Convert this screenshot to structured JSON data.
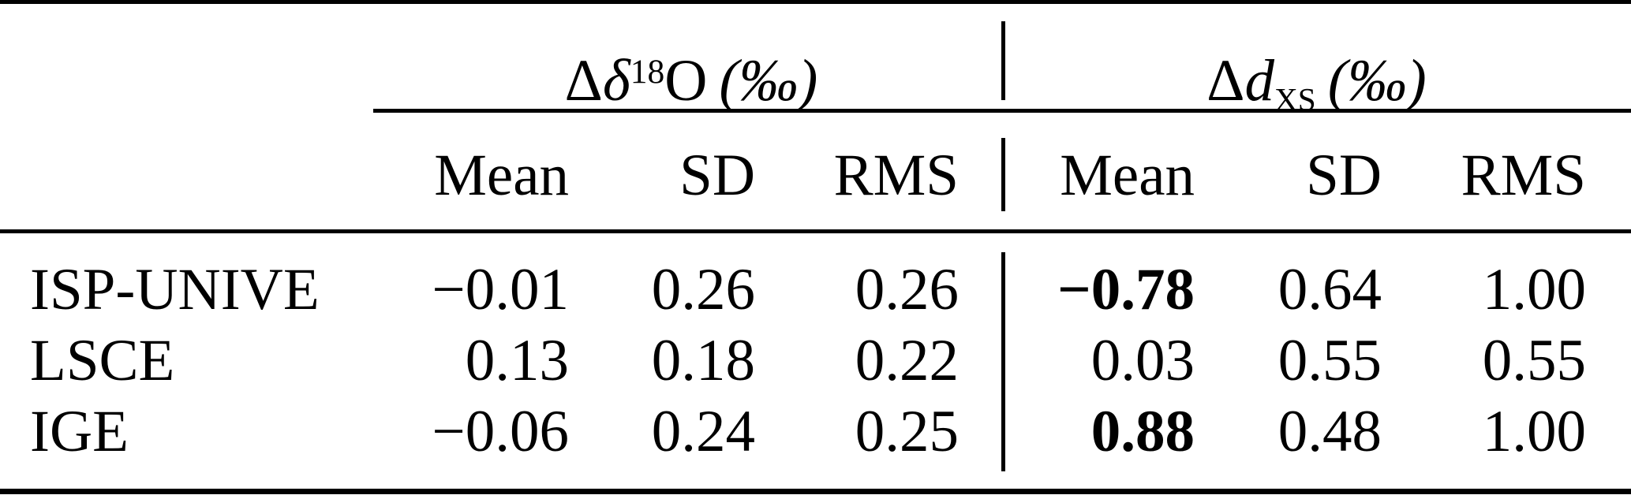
{
  "table": {
    "group_headers": [
      {
        "delta": "Δ",
        "symbol": "δ",
        "superscript": "18",
        "element": "O",
        "unit": "(‰)"
      },
      {
        "delta": "Δ",
        "symbol": "d",
        "subscript": "XS",
        "unit": "(‰)"
      }
    ],
    "column_headers": [
      "Mean",
      "SD",
      "RMS",
      "Mean",
      "SD",
      "RMS"
    ],
    "rows": [
      {
        "label": "ISP-UNIVE",
        "values": [
          "−0.01",
          "0.26",
          "0.26",
          "−0.78",
          "0.64",
          "1.00"
        ],
        "bold_value_indices": [
          3
        ]
      },
      {
        "label": "LSCE",
        "values": [
          "0.13",
          "0.18",
          "0.22",
          "0.03",
          "0.55",
          "0.55"
        ],
        "bold_value_indices": []
      },
      {
        "label": "IGE",
        "values": [
          "−0.06",
          "0.24",
          "0.25",
          "0.88",
          "0.48",
          "1.00"
        ],
        "bold_value_indices": [
          3
        ]
      }
    ],
    "colors": {
      "text": "#000000",
      "background": "#ffffff",
      "rules": "#000000"
    }
  }
}
